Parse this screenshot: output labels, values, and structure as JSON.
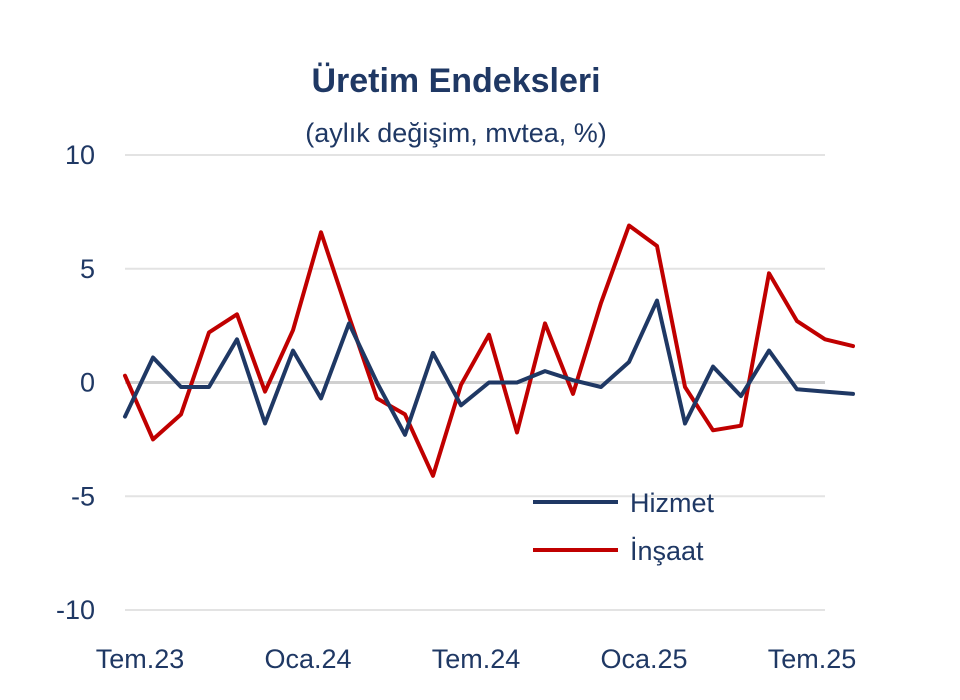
{
  "chart_data": {
    "type": "line",
    "title": "Üretim Endeksleri",
    "subtitle": "(aylık değişim, mvtea, %)",
    "xlabel": "",
    "ylabel": "",
    "ylim": [
      -10,
      10
    ],
    "yticks": [
      10,
      5,
      0,
      -5,
      -10
    ],
    "x": [
      "2023-07",
      "2023-08",
      "2023-09",
      "2023-10",
      "2023-11",
      "2023-12",
      "2024-01",
      "2024-02",
      "2024-03",
      "2024-04",
      "2024-05",
      "2024-06",
      "2024-07",
      "2024-08",
      "2024-09",
      "2024-10",
      "2024-11",
      "2024-12",
      "2025-01",
      "2025-02",
      "2025-03",
      "2025-04",
      "2025-05",
      "2025-06",
      "2025-07",
      "2025-08",
      "2025-09"
    ],
    "xtick_labels": [
      {
        "x": "2023-07",
        "label": "Tem.23"
      },
      {
        "x": "2024-01",
        "label": "Oca.24"
      },
      {
        "x": "2024-07",
        "label": "Tem.24"
      },
      {
        "x": "2025-01",
        "label": "Oca.25"
      },
      {
        "x": "2025-07",
        "label": "Tem.25"
      }
    ],
    "series": [
      {
        "name": "Hizmet",
        "color": "#1f3864",
        "values": [
          -1.5,
          1.1,
          -0.2,
          -0.2,
          1.9,
          -1.8,
          1.4,
          -0.7,
          2.6,
          0.0,
          -2.3,
          1.3,
          -1.0,
          0.0,
          0.0,
          0.5,
          0.1,
          -0.2,
          0.9,
          3.6,
          -1.8,
          0.7,
          -0.6,
          1.4,
          -0.3,
          -0.4,
          -0.5
        ]
      },
      {
        "name": "İnşaat",
        "color": "#c00000",
        "values": [
          0.3,
          -2.5,
          -1.4,
          2.2,
          3.0,
          -0.4,
          2.3,
          6.6,
          2.9,
          -0.7,
          -1.4,
          -4.1,
          -0.1,
          2.1,
          -2.2,
          2.6,
          -0.5,
          3.5,
          6.9,
          6.0,
          -0.2,
          -2.1,
          -1.9,
          4.8,
          2.7,
          1.9,
          1.6
        ]
      }
    ],
    "legend": {
      "position": "bottom-right"
    },
    "grid": true
  }
}
